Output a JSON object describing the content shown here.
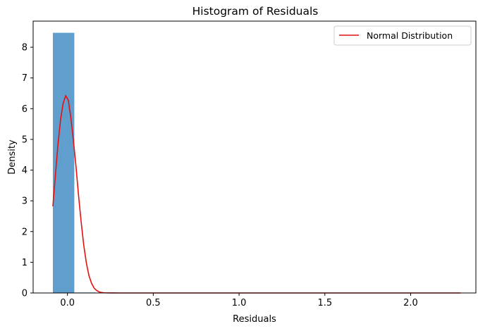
{
  "chart_data": {
    "type": "bar",
    "title": "Histogram of Residuals",
    "xlabel": "Residuals",
    "ylabel": "Density",
    "xlim": [
      -0.2,
      2.38
    ],
    "ylim": [
      0,
      8.85
    ],
    "xticks": [
      0.0,
      0.5,
      1.0,
      1.5,
      2.0
    ],
    "xtick_labels": [
      "0.0",
      "0.5",
      "1.0",
      "1.5",
      "2.0"
    ],
    "yticks": [
      0,
      1,
      2,
      3,
      4,
      5,
      6,
      7,
      8
    ],
    "ytick_labels": [
      "0",
      "1",
      "2",
      "3",
      "4",
      "5",
      "6",
      "7",
      "8"
    ],
    "grid": false,
    "legend_position": "top-right",
    "histogram": {
      "color": "#5f9ecd",
      "bins": [
        {
          "x0": -0.085,
          "x1": 0.04,
          "density": 8.47
        },
        {
          "x0": 0.04,
          "x1": 0.165,
          "density": 0.015
        },
        {
          "x0": 0.165,
          "x1": 0.29,
          "density": 0.0
        },
        {
          "x0": 0.29,
          "x1": 0.415,
          "density": 0.0
        },
        {
          "x0": 0.415,
          "x1": 0.54,
          "density": 0.0
        },
        {
          "x0": 0.54,
          "x1": 0.665,
          "density": 0.0
        },
        {
          "x0": 0.665,
          "x1": 0.79,
          "density": 0.0
        },
        {
          "x0": 0.79,
          "x1": 0.915,
          "density": 0.0
        },
        {
          "x0": 0.915,
          "x1": 1.04,
          "density": 0.0
        },
        {
          "x0": 1.04,
          "x1": 1.165,
          "density": 0.0
        },
        {
          "x0": 1.165,
          "x1": 1.29,
          "density": 0.0
        },
        {
          "x0": 1.29,
          "x1": 1.415,
          "density": 0.0
        },
        {
          "x0": 1.415,
          "x1": 1.54,
          "density": 0.0
        },
        {
          "x0": 1.54,
          "x1": 1.665,
          "density": 0.0
        },
        {
          "x0": 1.665,
          "x1": 1.79,
          "density": 0.0
        },
        {
          "x0": 1.79,
          "x1": 1.915,
          "density": 0.0
        },
        {
          "x0": 1.915,
          "x1": 2.04,
          "density": 0.0
        },
        {
          "x0": 2.04,
          "x1": 2.165,
          "density": 0.0
        },
        {
          "x0": 2.165,
          "x1": 2.29,
          "density": 0.0
        }
      ]
    },
    "series": [
      {
        "name": "Normal Distribution",
        "type": "line",
        "color": "#e8100f",
        "x": [
          -0.085,
          -0.07,
          -0.055,
          -0.04,
          -0.025,
          -0.01,
          0.005,
          0.02,
          0.035,
          0.05,
          0.065,
          0.08,
          0.095,
          0.11,
          0.125,
          0.14,
          0.155,
          0.17,
          0.185,
          0.2,
          0.215,
          0.23,
          0.26,
          0.3,
          0.4,
          0.6,
          0.8,
          1.0,
          1.2,
          1.4,
          1.6,
          1.8,
          2.0,
          2.2,
          2.29
        ],
        "y": [
          2.82,
          3.85,
          4.85,
          5.65,
          6.18,
          6.42,
          6.28,
          5.7,
          4.95,
          4.1,
          3.15,
          2.3,
          1.55,
          0.98,
          0.57,
          0.32,
          0.16,
          0.08,
          0.035,
          0.015,
          0.006,
          0.003,
          0.001,
          0.0,
          0.0,
          0.0,
          0.0,
          0.0,
          0.0,
          0.0,
          0.0,
          0.0,
          0.0,
          0.0,
          0.0
        ]
      }
    ]
  }
}
